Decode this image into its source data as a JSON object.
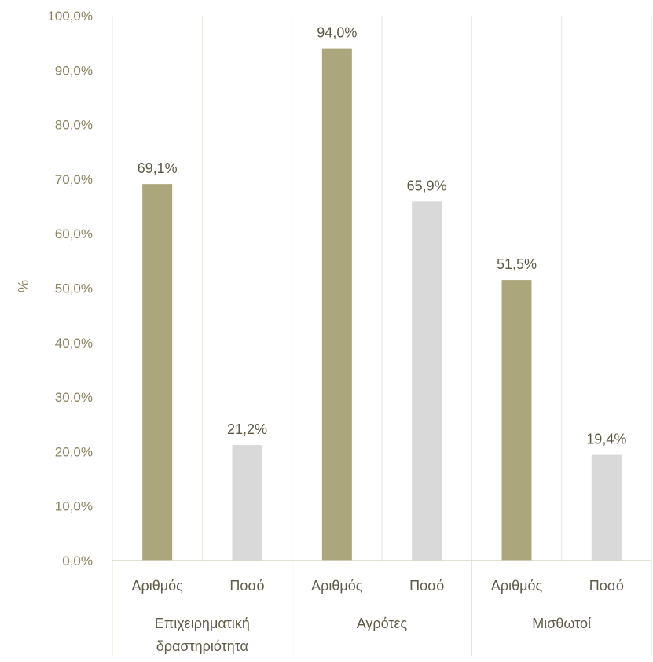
{
  "chart_data": {
    "type": "bar",
    "ylabel": "%",
    "ylim": [
      0,
      100
    ],
    "yticks": [
      "0,0%",
      "10,0%",
      "20,0%",
      "30,0%",
      "40,0%",
      "50,0%",
      "60,0%",
      "70,0%",
      "80,0%",
      "90,0%",
      "100,0%"
    ],
    "groups": [
      {
        "label_lines": [
          "Επιχειρηματική",
          "δραστηριότητα"
        ],
        "bars": [
          {
            "label": "Αριθμός",
            "value": 69.1,
            "display": "69,1%"
          },
          {
            "label": "Ποσό",
            "value": 21.2,
            "display": "21,2%"
          }
        ]
      },
      {
        "label_lines": [
          "Αγρότες"
        ],
        "bars": [
          {
            "label": "Αριθμός",
            "value": 94.0,
            "display": "94,0%"
          },
          {
            "label": "Ποσό",
            "value": 65.9,
            "display": "65,9%"
          }
        ]
      },
      {
        "label_lines": [
          "Μισθωτοί"
        ],
        "bars": [
          {
            "label": "Αριθμός",
            "value": 51.5,
            "display": "51,5%"
          },
          {
            "label": "Ποσό",
            "value": 19.4,
            "display": "19,4%"
          }
        ]
      }
    ],
    "colors": {
      "Αριθμός": "#aba67c",
      "Ποσό": "#d9d9d9"
    },
    "grid": "vertical-separators",
    "legend": "none"
  }
}
